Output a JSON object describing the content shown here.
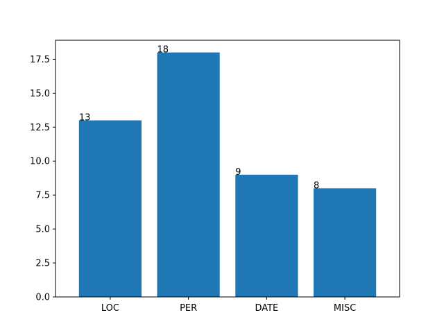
{
  "colors": {
    "bar": "#1f77b4",
    "axes": "#000000",
    "background": "#ffffff"
  },
  "chart_data": {
    "type": "bar",
    "title": "",
    "xlabel": "",
    "ylabel": "",
    "categories": [
      "LOC",
      "PER",
      "DATE",
      "MISC"
    ],
    "values": [
      13,
      18,
      9,
      8
    ],
    "data_labels": [
      "13",
      "18",
      "9",
      "8"
    ],
    "ylim": [
      0,
      18.9
    ],
    "yticks": [
      0.0,
      2.5,
      5.0,
      7.5,
      10.0,
      12.5,
      15.0,
      17.5
    ],
    "ytick_labels": [
      "0.0",
      "2.5",
      "5.0",
      "7.5",
      "10.0",
      "12.5",
      "15.0",
      "17.5"
    ],
    "grid": false,
    "legend": "none"
  }
}
